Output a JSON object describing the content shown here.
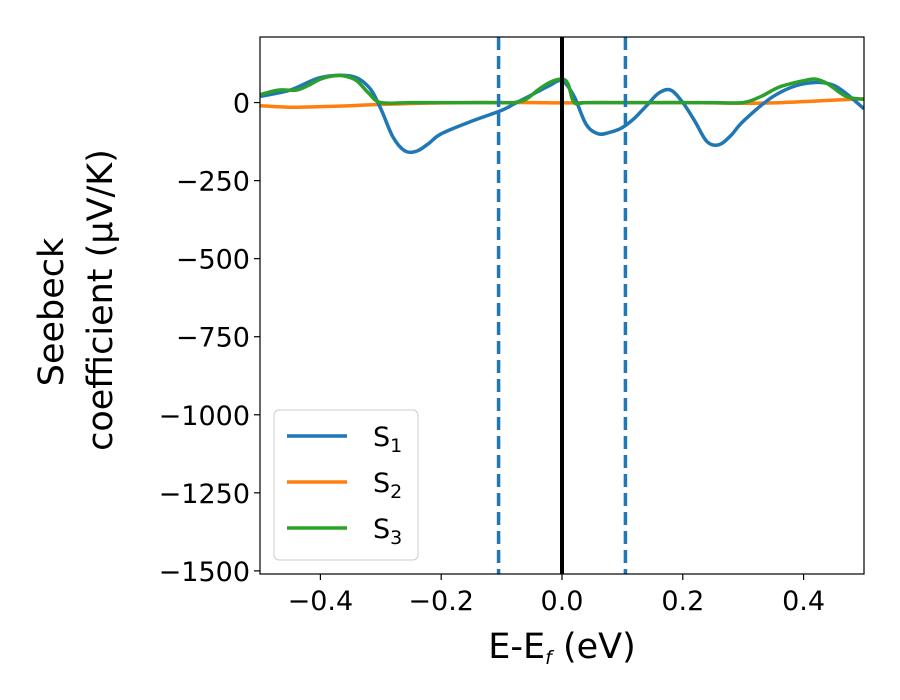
{
  "chart_data": {
    "type": "line",
    "xlabel": {
      "main": "E-E",
      "sub": "f",
      "unit": " (eV)"
    },
    "ylabel": {
      "line1": "Seebeck",
      "line2": "coefficient  (μV/K)"
    },
    "xlim": [
      -0.5,
      0.5
    ],
    "ylim": [
      -1510,
      210
    ],
    "xticks": [
      -0.4,
      -0.2,
      0.0,
      0.2,
      0.4
    ],
    "xtick_labels": [
      "−0.4",
      "−0.2",
      "0.0",
      "0.2",
      "0.4"
    ],
    "yticks": [
      0,
      -250,
      -500,
      -750,
      -1000,
      -1250,
      -1500
    ],
    "ytick_labels": [
      "0",
      "−250",
      "−500",
      "−750",
      "−1000",
      "−1250",
      "−1500"
    ],
    "legend": {
      "position": "lower-left"
    },
    "vlines": [
      {
        "x": -0.105,
        "style": "dashed",
        "color": "#1f77b4"
      },
      {
        "x": 0.0,
        "style": "solid",
        "color": "#000000"
      },
      {
        "x": 0.105,
        "style": "dashed",
        "color": "#1f77b4"
      }
    ],
    "series": [
      {
        "name": "S",
        "sub": "1",
        "color": "#1f77b4",
        "x": [
          -0.5,
          -0.45,
          -0.4,
          -0.35,
          -0.32,
          -0.3,
          -0.28,
          -0.26,
          -0.24,
          -0.22,
          -0.2,
          -0.15,
          -0.1,
          -0.08,
          -0.06,
          -0.04,
          -0.02,
          0.0,
          0.02,
          0.04,
          0.06,
          0.08,
          0.1,
          0.12,
          0.14,
          0.16,
          0.18,
          0.2,
          0.22,
          0.24,
          0.26,
          0.28,
          0.3,
          0.35,
          0.4,
          0.45,
          0.5
        ],
        "values": [
          20,
          40,
          80,
          85,
          50,
          -20,
          -110,
          -155,
          -155,
          -130,
          -100,
          -60,
          -25,
          -5,
          15,
          35,
          55,
          70,
          20,
          -70,
          -100,
          -95,
          -80,
          -50,
          -10,
          30,
          40,
          0,
          -60,
          -125,
          -135,
          -105,
          -60,
          20,
          60,
          55,
          -20
        ]
      },
      {
        "name": "S",
        "sub": "2",
        "color": "#ff7f0e",
        "x": [
          -0.5,
          -0.45,
          -0.4,
          -0.35,
          -0.3,
          -0.25,
          -0.2,
          -0.15,
          -0.1,
          -0.05,
          0.0,
          0.05,
          0.1,
          0.15,
          0.2,
          0.25,
          0.3,
          0.35,
          0.4,
          0.45,
          0.5
        ],
        "values": [
          -10,
          -15,
          -13,
          -10,
          -6,
          -3,
          -1,
          0,
          0,
          0,
          -1,
          0,
          0,
          0,
          0,
          -1,
          -2,
          -1,
          3,
          8,
          12
        ]
      },
      {
        "name": "S",
        "sub": "3",
        "color": "#2ca02c",
        "x": [
          -0.5,
          -0.47,
          -0.44,
          -0.42,
          -0.4,
          -0.38,
          -0.36,
          -0.34,
          -0.32,
          -0.3,
          -0.25,
          -0.2,
          -0.15,
          -0.1,
          -0.08,
          -0.06,
          -0.04,
          -0.02,
          0.0,
          0.01,
          0.02,
          0.04,
          0.1,
          0.15,
          0.2,
          0.25,
          0.3,
          0.33,
          0.36,
          0.4,
          0.42,
          0.44,
          0.47,
          0.5
        ],
        "values": [
          25,
          40,
          40,
          55,
          75,
          85,
          85,
          70,
          30,
          0,
          0,
          0,
          0,
          0,
          0,
          10,
          40,
          65,
          75,
          60,
          0,
          0,
          0,
          0,
          0,
          0,
          0,
          20,
          50,
          70,
          75,
          60,
          20,
          10
        ]
      }
    ]
  }
}
